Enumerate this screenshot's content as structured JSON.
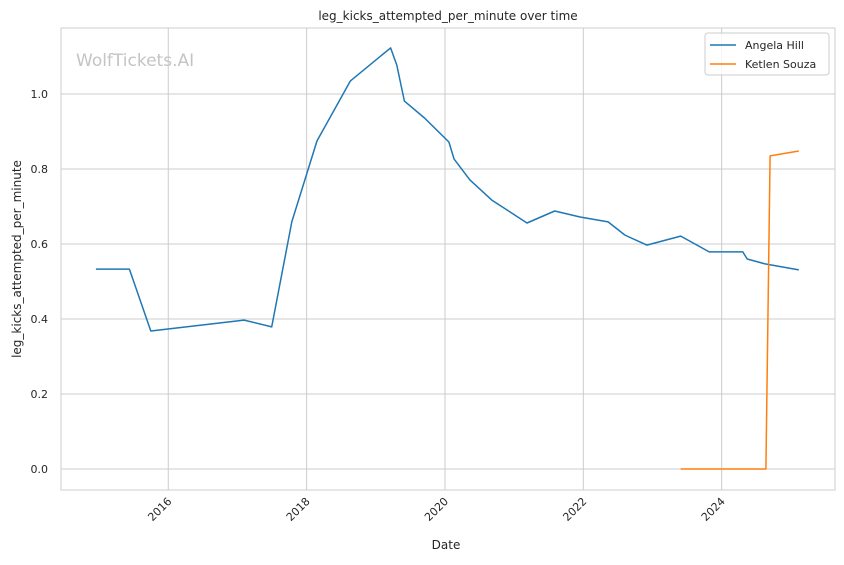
{
  "chart_data": {
    "type": "line",
    "title": "leg_kicks_attempted_per_minute over time",
    "xlabel": "Date",
    "ylabel": "leg_kicks_attempted_per_minute",
    "xlim": [
      "2014-06-14",
      "2025-08-22"
    ],
    "ylim": [
      -0.056,
      1.176
    ],
    "x_ticks": [
      "2016",
      "2018",
      "2020",
      "2022",
      "2024"
    ],
    "y_ticks": [
      0.0,
      0.2,
      0.4,
      0.6,
      0.8,
      1.0
    ],
    "y_tick_labels": [
      "0.0",
      "0.2",
      "0.4",
      "0.6",
      "0.8",
      "1.0"
    ],
    "grid": true,
    "legend_placement": "top-right",
    "watermark": "WolfTickets.AI",
    "series": [
      {
        "name": "Angela Hill",
        "color": "#1f77b4",
        "points": [
          [
            "2014-12-15",
            0.533
          ],
          [
            "2015-06-10",
            0.533
          ],
          [
            "2015-10-01",
            0.368
          ],
          [
            "2017-02-05",
            0.397
          ],
          [
            "2017-07-01",
            0.379
          ],
          [
            "2017-10-15",
            0.659
          ],
          [
            "2018-02-25",
            0.875
          ],
          [
            "2018-08-20",
            1.035
          ],
          [
            "2019-03-20",
            1.123
          ],
          [
            "2019-04-22",
            1.077
          ],
          [
            "2019-06-01",
            0.981
          ],
          [
            "2019-09-15",
            0.936
          ],
          [
            "2020-01-22",
            0.872
          ],
          [
            "2020-02-18",
            0.827
          ],
          [
            "2020-05-12",
            0.771
          ],
          [
            "2020-09-05",
            0.717
          ],
          [
            "2021-03-10",
            0.656
          ],
          [
            "2021-08-03",
            0.688
          ],
          [
            "2021-12-15",
            0.672
          ],
          [
            "2022-05-12",
            0.659
          ],
          [
            "2022-08-08",
            0.624
          ],
          [
            "2022-12-02",
            0.597
          ],
          [
            "2023-05-30",
            0.621
          ],
          [
            "2023-10-27",
            0.579
          ],
          [
            "2024-04-22",
            0.579
          ],
          [
            "2024-05-15",
            0.56
          ],
          [
            "2024-08-18",
            0.547
          ],
          [
            "2025-02-12",
            0.531
          ]
        ]
      },
      {
        "name": "Ketlen Souza",
        "color": "#ff7f0e",
        "points": [
          [
            "2023-05-30",
            0.0
          ],
          [
            "2024-08-22",
            0.0
          ],
          [
            "2024-09-13",
            0.835
          ],
          [
            "2025-02-12",
            0.848
          ]
        ]
      }
    ]
  }
}
